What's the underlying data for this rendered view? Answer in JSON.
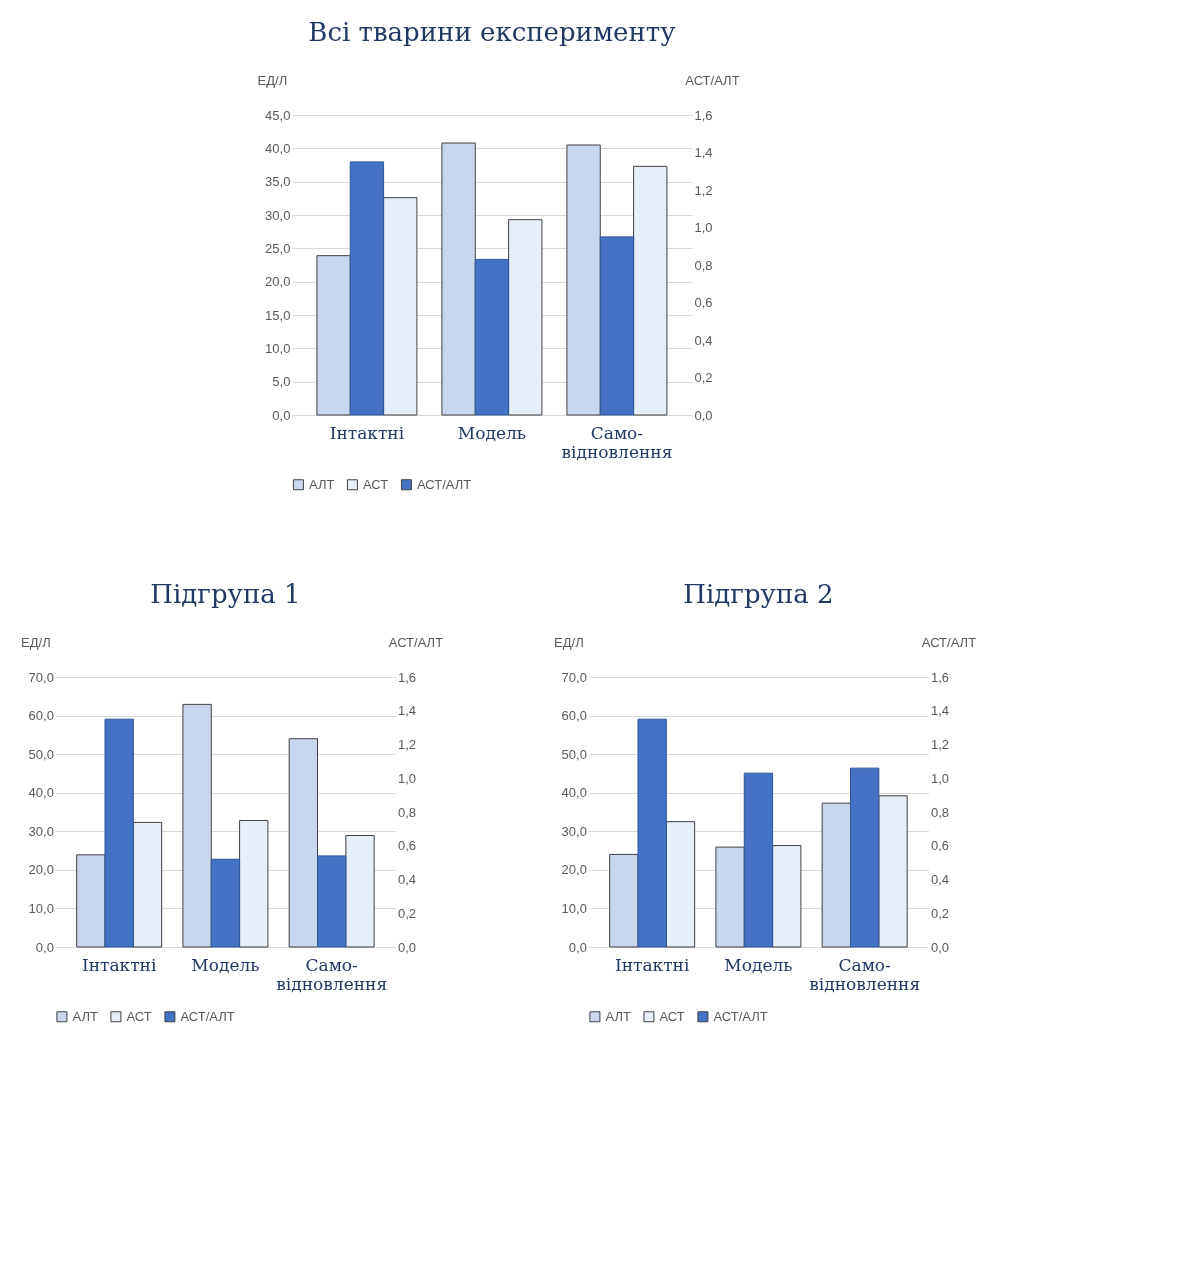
{
  "chart_data": [
    {
      "type": "bar",
      "title": "Всі тварини експерименту",
      "ylabel": "ЕД/Л",
      "y2label": "АСТ/АЛТ",
      "categories": [
        "Інтактні",
        "Модель",
        "Само-відновлення"
      ],
      "series": [
        {
          "name": "АЛТ",
          "color": "#c9d7ee",
          "values": [
            23.9,
            40.8,
            40.5
          ]
        },
        {
          "name": "АСТ",
          "color": "#e6eef9",
          "values": [
            32.6,
            29.3,
            37.3
          ]
        },
        {
          "name": "АСТ/АЛТ",
          "color": "#4472c4",
          "axis": "y2",
          "values": [
            1.35,
            0.83,
            0.95
          ]
        }
      ],
      "ylim": [
        0,
        45
      ],
      "yticks": [
        {
          "value": 0,
          "label": "0,0"
        },
        {
          "value": 5,
          "label": "5,0"
        },
        {
          "value": 10,
          "label": "10,0"
        },
        {
          "value": 15,
          "label": "15,0"
        },
        {
          "value": 20,
          "label": "20,0"
        },
        {
          "value": 25,
          "label": "25,0"
        },
        {
          "value": 30,
          "label": "30,0"
        },
        {
          "value": 35,
          "label": "35,0"
        },
        {
          "value": 40,
          "label": "40,0"
        },
        {
          "value": 45,
          "label": "45,0"
        }
      ],
      "y2lim": [
        0,
        1.6
      ],
      "y2ticks": [
        {
          "value": 0,
          "label": "0,0"
        },
        {
          "value": 0.2,
          "label": "0,2"
        },
        {
          "value": 0.4,
          "label": "0,4"
        },
        {
          "value": 0.6,
          "label": "0,6"
        },
        {
          "value": 0.8,
          "label": "0,8"
        },
        {
          "value": 1.0,
          "label": "1,0"
        },
        {
          "value": 1.2,
          "label": "1,2"
        },
        {
          "value": 1.4,
          "label": "1,4"
        },
        {
          "value": 1.6,
          "label": "1,6"
        }
      ],
      "grid": "y",
      "legend": "bottom"
    },
    {
      "type": "bar",
      "title": "Підгрупа 1",
      "ylabel": "ЕД/Л",
      "y2label": "АСТ/АЛТ",
      "categories": [
        "Інтактні",
        "Модель",
        "Само-відновлення"
      ],
      "series": [
        {
          "name": "АЛТ",
          "color": "#c9d7ee",
          "values": [
            23.9,
            62.9,
            54.0
          ]
        },
        {
          "name": "АСТ",
          "color": "#e6eef9",
          "values": [
            32.3,
            32.8,
            28.9
          ]
        },
        {
          "name": "АСТ/АЛТ",
          "color": "#4472c4",
          "axis": "y2",
          "values": [
            1.35,
            0.52,
            0.54
          ]
        }
      ],
      "ylim": [
        0,
        70
      ],
      "yticks": [
        {
          "value": 0,
          "label": "0,0"
        },
        {
          "value": 10,
          "label": "10,0"
        },
        {
          "value": 20,
          "label": "20,0"
        },
        {
          "value": 30,
          "label": "30,0"
        },
        {
          "value": 40,
          "label": "40,0"
        },
        {
          "value": 50,
          "label": "50,0"
        },
        {
          "value": 60,
          "label": "60,0"
        },
        {
          "value": 70,
          "label": "70,0"
        }
      ],
      "y2lim": [
        0,
        1.6
      ],
      "y2ticks": [
        {
          "value": 0,
          "label": "0,0"
        },
        {
          "value": 0.2,
          "label": "0,2"
        },
        {
          "value": 0.4,
          "label": "0,4"
        },
        {
          "value": 0.6,
          "label": "0,6"
        },
        {
          "value": 0.8,
          "label": "0,8"
        },
        {
          "value": 1.0,
          "label": "1,0"
        },
        {
          "value": 1.2,
          "label": "1,2"
        },
        {
          "value": 1.4,
          "label": "1,4"
        },
        {
          "value": 1.6,
          "label": "1,6"
        }
      ],
      "grid": "y",
      "legend": "bottom"
    },
    {
      "type": "bar",
      "title": "Підгрупа 2",
      "ylabel": "ЕД/Л",
      "y2label": "АСТ/АЛТ",
      "categories": [
        "Інтактні",
        "Модель",
        "Само-відновлення"
      ],
      "series": [
        {
          "name": "АЛТ",
          "color": "#c9d7ee",
          "values": [
            24.0,
            25.9,
            37.3
          ]
        },
        {
          "name": "АСТ",
          "color": "#e6eef9",
          "values": [
            32.5,
            26.3,
            39.2
          ]
        },
        {
          "name": "АСТ/АЛТ",
          "color": "#4472c4",
          "axis": "y2",
          "values": [
            1.35,
            1.03,
            1.06
          ]
        }
      ],
      "ylim": [
        0,
        70
      ],
      "yticks": [
        {
          "value": 0,
          "label": "0,0"
        },
        {
          "value": 10,
          "label": "10,0"
        },
        {
          "value": 20,
          "label": "20,0"
        },
        {
          "value": 30,
          "label": "30,0"
        },
        {
          "value": 40,
          "label": "40,0"
        },
        {
          "value": 50,
          "label": "50,0"
        },
        {
          "value": 60,
          "label": "60,0"
        },
        {
          "value": 70,
          "label": "70,0"
        }
      ],
      "y2lim": [
        0,
        1.6
      ],
      "y2ticks": [
        {
          "value": 0,
          "label": "0,0"
        },
        {
          "value": 0.2,
          "label": "0,2"
        },
        {
          "value": 0.4,
          "label": "0,4"
        },
        {
          "value": 0.6,
          "label": "0,6"
        },
        {
          "value": 0.8,
          "label": "0,8"
        },
        {
          "value": 1.0,
          "label": "1,0"
        },
        {
          "value": 1.2,
          "label": "1,2"
        },
        {
          "value": 1.4,
          "label": "1,4"
        },
        {
          "value": 1.6,
          "label": "1,6"
        }
      ],
      "grid": "y",
      "legend": "bottom"
    }
  ]
}
